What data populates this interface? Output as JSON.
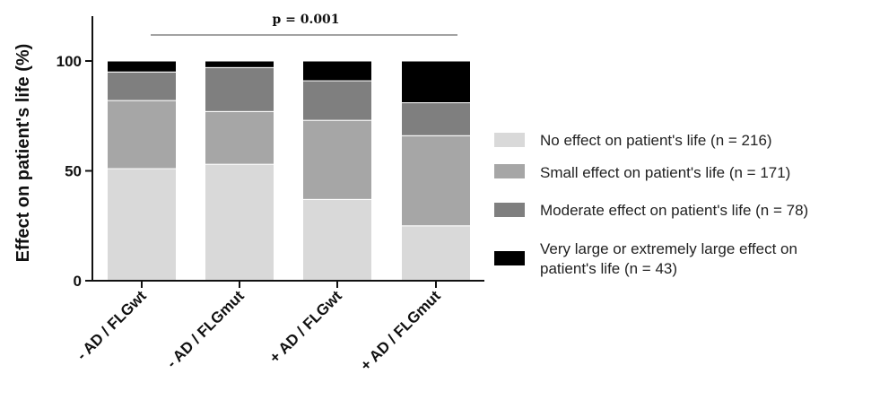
{
  "chart_data": {
    "type": "bar",
    "stacked": true,
    "title": "",
    "xlabel": "",
    "ylabel": "Effect on patient's life (%)",
    "ylim": [
      0,
      100
    ],
    "yticks": [
      0,
      50,
      100
    ],
    "categories": [
      "- AD / FLGwt",
      "- AD / FLGmut",
      "+ AD / FLGwt",
      "+ AD / FLGmut"
    ],
    "series": [
      {
        "name": "No effect on patient's life (n = 216)",
        "color": "#d9d9d9",
        "values": [
          51,
          53,
          37,
          25
        ]
      },
      {
        "name": "Small effect on patient's life (n = 171)",
        "color": "#a6a6a6",
        "values": [
          31,
          24,
          36,
          41
        ]
      },
      {
        "name": "Moderate effect on patient's life (n = 78)",
        "color": "#7f7f7f",
        "values": [
          13,
          20,
          18,
          15
        ]
      },
      {
        "name": "Very large or extremely large effect on patient's life (n = 43)",
        "color": "#000000",
        "values": [
          5,
          3,
          9,
          19
        ]
      }
    ],
    "annotation": "p = 0.001",
    "legend_position": "right",
    "grid": false
  }
}
